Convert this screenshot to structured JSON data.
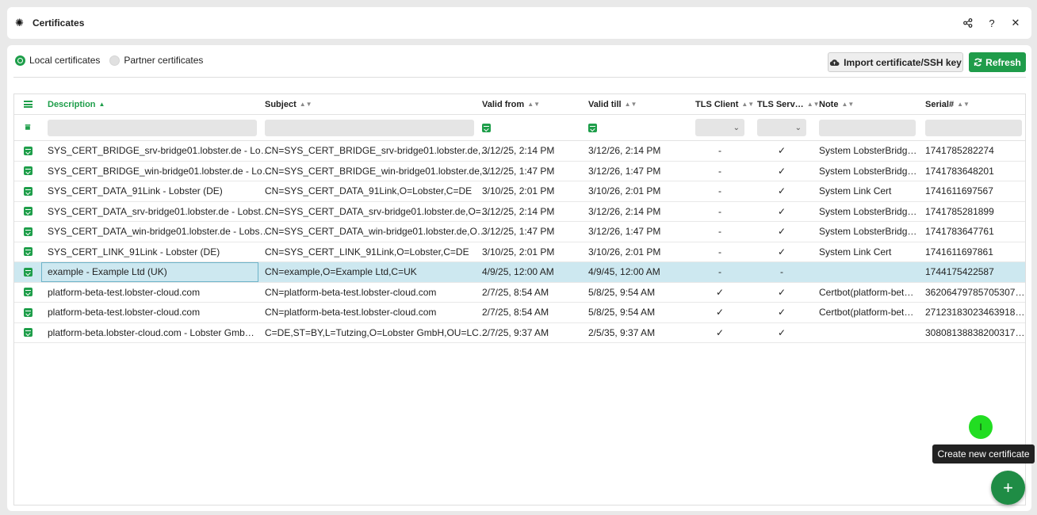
{
  "window": {
    "title": "Certificates",
    "icons": [
      "gear-icon",
      "share-icon",
      "help-icon",
      "close-icon"
    ]
  },
  "toolbar": {
    "radio_local": "Local certificates",
    "radio_partner": "Partner certificates",
    "import_label": "Import certificate/SSH key",
    "refresh_label": "Refresh"
  },
  "columns": [
    "Description",
    "Subject",
    "Valid from",
    "Valid till",
    "TLS Client",
    "TLS Serv…",
    "Note",
    "Serial#"
  ],
  "rows": [
    {
      "description": "SYS_CERT_BRIDGE_srv-bridge01.lobster.de - Lo…",
      "subject": "CN=SYS_CERT_BRIDGE_srv-bridge01.lobster.de,…",
      "valid_from": "3/12/25, 2:14 PM",
      "valid_till": "3/12/26, 2:14 PM",
      "tls_client": "-",
      "tls_server": "✓",
      "note": "System LobsterBridg…",
      "serial": "1741785282274"
    },
    {
      "description": "SYS_CERT_BRIDGE_win-bridge01.lobster.de - Lo…",
      "subject": "CN=SYS_CERT_BRIDGE_win-bridge01.lobster.de,…",
      "valid_from": "3/12/25, 1:47 PM",
      "valid_till": "3/12/26, 1:47 PM",
      "tls_client": "-",
      "tls_server": "✓",
      "note": "System LobsterBridg…",
      "serial": "1741783648201"
    },
    {
      "description": "SYS_CERT_DATA_91Link - Lobster (DE)",
      "subject": "CN=SYS_CERT_DATA_91Link,O=Lobster,C=DE",
      "valid_from": "3/10/25, 2:01 PM",
      "valid_till": "3/10/26, 2:01 PM",
      "tls_client": "-",
      "tls_server": "✓",
      "note": "System Link Cert",
      "serial": "1741611697567"
    },
    {
      "description": "SYS_CERT_DATA_srv-bridge01.lobster.de - Lobst…",
      "subject": "CN=SYS_CERT_DATA_srv-bridge01.lobster.de,O=…",
      "valid_from": "3/12/25, 2:14 PM",
      "valid_till": "3/12/26, 2:14 PM",
      "tls_client": "-",
      "tls_server": "✓",
      "note": "System LobsterBridg…",
      "serial": "1741785281899"
    },
    {
      "description": "SYS_CERT_DATA_win-bridge01.lobster.de - Lobs…",
      "subject": "CN=SYS_CERT_DATA_win-bridge01.lobster.de,O…",
      "valid_from": "3/12/25, 1:47 PM",
      "valid_till": "3/12/26, 1:47 PM",
      "tls_client": "-",
      "tls_server": "✓",
      "note": "System LobsterBridg…",
      "serial": "1741783647761"
    },
    {
      "description": "SYS_CERT_LINK_91Link - Lobster (DE)",
      "subject": "CN=SYS_CERT_LINK_91Link,O=Lobster,C=DE",
      "valid_from": "3/10/25, 2:01 PM",
      "valid_till": "3/10/26, 2:01 PM",
      "tls_client": "-",
      "tls_server": "✓",
      "note": "System Link Cert",
      "serial": "1741611697861"
    },
    {
      "description": "example - Example Ltd (UK)",
      "subject": "CN=example,O=Example Ltd,C=UK",
      "valid_from": "4/9/25, 12:00 AM",
      "valid_till": "4/9/45, 12:00 AM",
      "tls_client": "-",
      "tls_server": "-",
      "note": "",
      "serial": "1744175422587",
      "selected": true
    },
    {
      "description": "platform-beta-test.lobster-cloud.com",
      "subject": "CN=platform-beta-test.lobster-cloud.com",
      "valid_from": "2/7/25, 8:54 AM",
      "valid_till": "5/8/25, 9:54 AM",
      "tls_client": "✓",
      "tls_server": "✓",
      "note": "Certbot(platform-bet…",
      "serial": "36206479785705307…"
    },
    {
      "description": "platform-beta-test.lobster-cloud.com",
      "subject": "CN=platform-beta-test.lobster-cloud.com",
      "valid_from": "2/7/25, 8:54 AM",
      "valid_till": "5/8/25, 9:54 AM",
      "tls_client": "✓",
      "tls_server": "✓",
      "note": "Certbot(platform-bet…",
      "serial": "27123183023463918…"
    },
    {
      "description": "platform-beta.lobster-cloud.com - Lobster Gmb…",
      "subject": "C=DE,ST=BY,L=Tutzing,O=Lobster GmbH,OU=LC…",
      "valid_from": "2/7/25, 9:37 AM",
      "valid_till": "2/5/35, 9:37 AM",
      "tls_client": "✓",
      "tls_server": "✓",
      "note": "",
      "serial": "30808138838200317…"
    }
  ],
  "cursor_marker": "I",
  "tooltip": "Create new certificate",
  "fab_label": "+",
  "colors": {
    "accent": "#1e9e4a",
    "selected_row": "#cde8f0"
  }
}
